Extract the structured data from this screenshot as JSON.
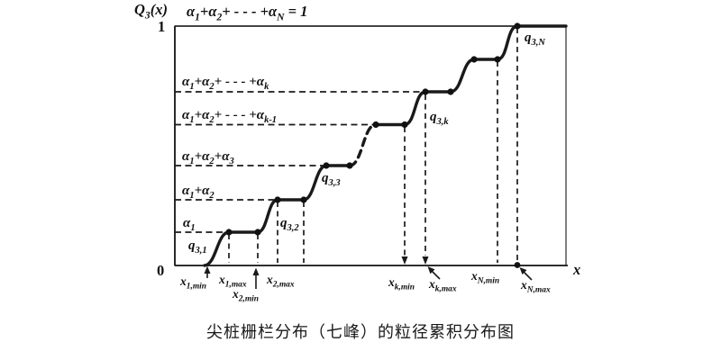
{
  "labels": {
    "q3x": "Q_{3}(x)",
    "one": "1",
    "zero": "0",
    "eq_top": "α_{1}+α_{2}+ - - - +α_{N} = 1",
    "lvl_k": "α_{1}+α_{2}+ - - - +α_{k}",
    "lvl_km1": "α_{1}+α_{2}+ - - - +α_{k-1}",
    "lvl_3": "α_{1}+α_{2}+α_{3}",
    "lvl_2": "α_{1}+α_{2}",
    "lvl_1": "α_{1}",
    "q31": "q_{3,1}",
    "q32": "q_{3,2}",
    "q33": "q_{3,3}",
    "q3k": "q_{3,k}",
    "q3N": "q_{3,N}",
    "x1min": "x_{1,min}",
    "x1max": "x_{1,max}",
    "x2min": "x_{2,min}",
    "x2max": "x_{2,max}",
    "xkmin": "x_{k,min}",
    "xkmax": "x_{k,max}",
    "xNmin": "x_{N,min}",
    "xNmax": "x_{N,max}",
    "x_axis": "x"
  },
  "caption": "尖桩栅栏分布（七峰）的粒径累积分布图",
  "colors": {
    "ink": "#1a1a1a",
    "box": "#3a3a3a",
    "background": "#ffffff"
  },
  "diagram": {
    "kind": "cumulative-step-distribution-curve",
    "y_range": [
      "0",
      "1"
    ],
    "visible_steps": 7,
    "dashed_segment_meaning": "omitted steps between step 3 and step k-1",
    "step_levels": [
      "α1",
      "α1+α2",
      "α1+α2+α3",
      "α1+α2+...+αk-1",
      "α1+α2+...+αk",
      "(unlabeled)",
      "α1+α2+...+αN = 1"
    ],
    "step_x_bounds": [
      "x1,min–x1,max",
      "x2,min–x2,max",
      "(unlabeled)",
      "(omitted)",
      "xk,min–xk,max",
      "(unlabeled)",
      "xN,min–xN,max"
    ],
    "segment_labels": [
      "q3,1",
      "q3,2",
      "q3,3",
      "q3,k",
      "q3,N"
    ]
  }
}
